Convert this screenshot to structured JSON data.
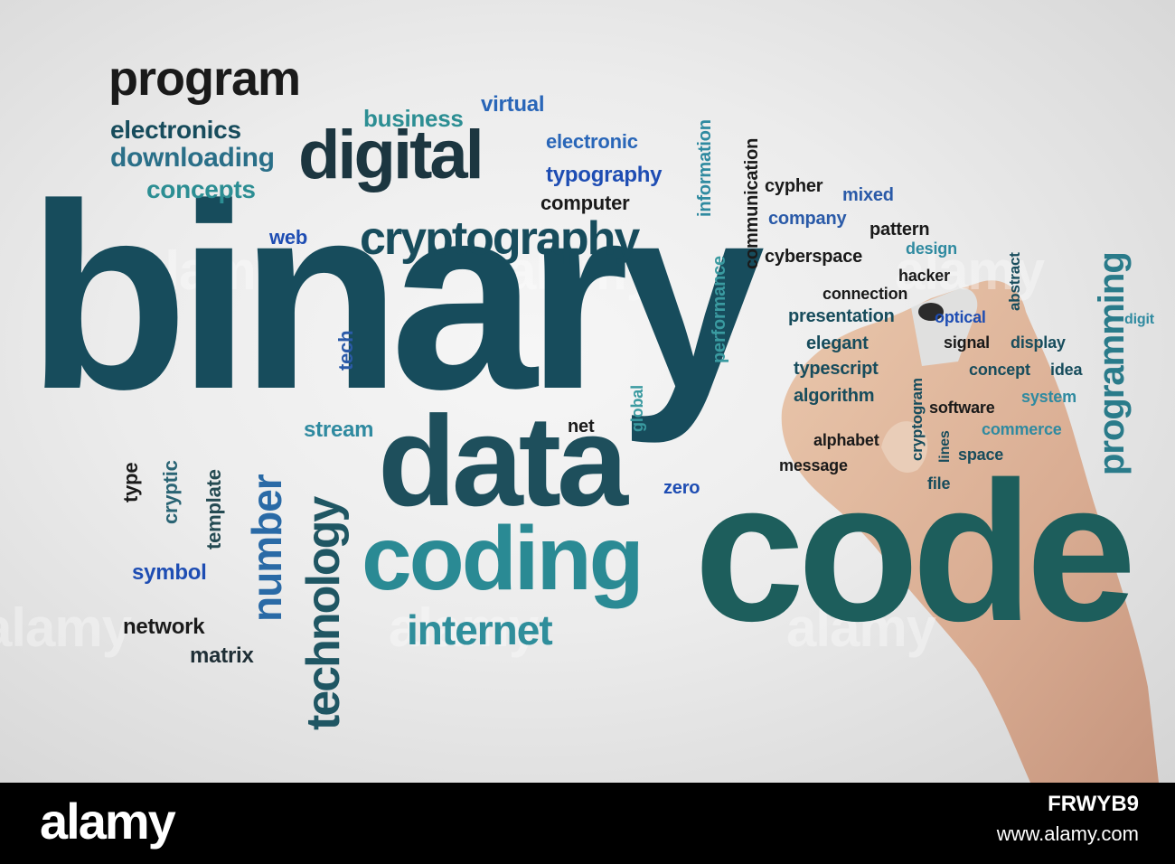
{
  "words": {
    "binary": "binary",
    "code": "code",
    "data": "data",
    "coding": "coding",
    "program": "program",
    "digital": "digital",
    "cryptography": "cryptography",
    "internet": "internet",
    "technology": "technology",
    "number": "number",
    "programming": "programming",
    "electronics": "electronics",
    "downloading": "downloading",
    "concepts": "concepts",
    "business": "business",
    "virtual": "virtual",
    "electronic": "electronic",
    "typography": "typography",
    "computer": "computer",
    "information": "information",
    "communication": "communication",
    "cypher": "cypher",
    "mixed": "mixed",
    "company": "company",
    "pattern": "pattern",
    "design": "design",
    "cyberspace": "cyberspace",
    "hacker": "hacker",
    "abstract": "abstract",
    "connection": "connection",
    "presentation": "presentation",
    "optical": "optical",
    "digit": "digit",
    "elegant": "elegant",
    "signal": "signal",
    "display": "display",
    "typescript": "typescript",
    "concept": "concept",
    "idea": "idea",
    "algorithm": "algorithm",
    "cryptogram": "cryptogram",
    "software": "software",
    "system": "system",
    "commerce": "commerce",
    "alphabet": "alphabet",
    "lines": "lines",
    "space": "space",
    "message": "message",
    "file": "file",
    "web": "web",
    "tech": "tech",
    "performance": "performance",
    "global": "global",
    "stream": "stream",
    "net": "net",
    "zero": "zero",
    "type": "type",
    "cryptic": "cryptic",
    "template": "template",
    "symbol": "symbol",
    "network": "network",
    "matrix": "matrix"
  },
  "watermark": "alamy",
  "banner": {
    "logo": "alamy",
    "image_id": "FRWYB9",
    "url": "www.alamy.com"
  }
}
